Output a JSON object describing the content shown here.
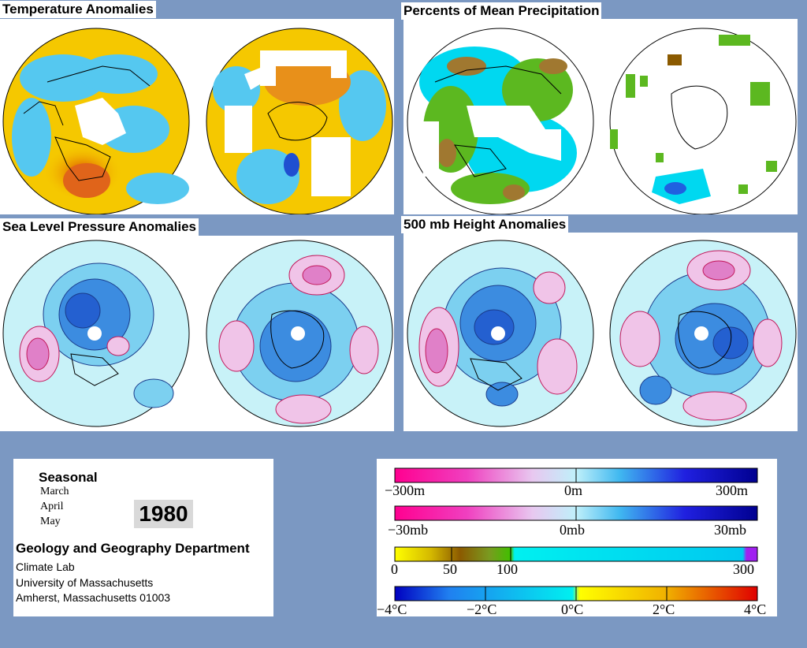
{
  "panels": {
    "temperature": {
      "title": "Temperature Anomalies"
    },
    "precipitation": {
      "title": "Percents of Mean Precipitation"
    },
    "slp": {
      "title": "Sea Level Pressure Anomalies"
    },
    "height500": {
      "title": "500 mb Height Anomalies"
    }
  },
  "info": {
    "period_type": "Seasonal",
    "months": [
      "March",
      "April",
      "May"
    ],
    "year": "1980",
    "department": "Geology and Geography Department",
    "lab": "Climate Lab",
    "university": "University of Massachusetts",
    "address": "Amherst, Massachusetts 01003"
  },
  "legend": {
    "height_scale": {
      "min_label": "−300m",
      "mid_label": "0m",
      "max_label": "300m"
    },
    "pressure_scale": {
      "min_label": "−30mb",
      "mid_label": "0mb",
      "max_label": "30mb"
    },
    "precip_scale": {
      "labels": [
        "0",
        "50",
        "100",
        "300"
      ]
    },
    "temp_scale": {
      "labels": [
        "−4°C",
        "−2°C",
        "0°C",
        "2°C",
        "4°C"
      ]
    }
  },
  "colors": {
    "background": "#7b98c2",
    "negative_magenta": "#ff1493",
    "positive_blue": "#0000cc",
    "precip_green": "#4caf20",
    "precip_brown": "#8b5a00",
    "temp_warm": "#e03c00",
    "temp_cool": "#2060e0",
    "neutral_cyan": "#00e5ff"
  }
}
